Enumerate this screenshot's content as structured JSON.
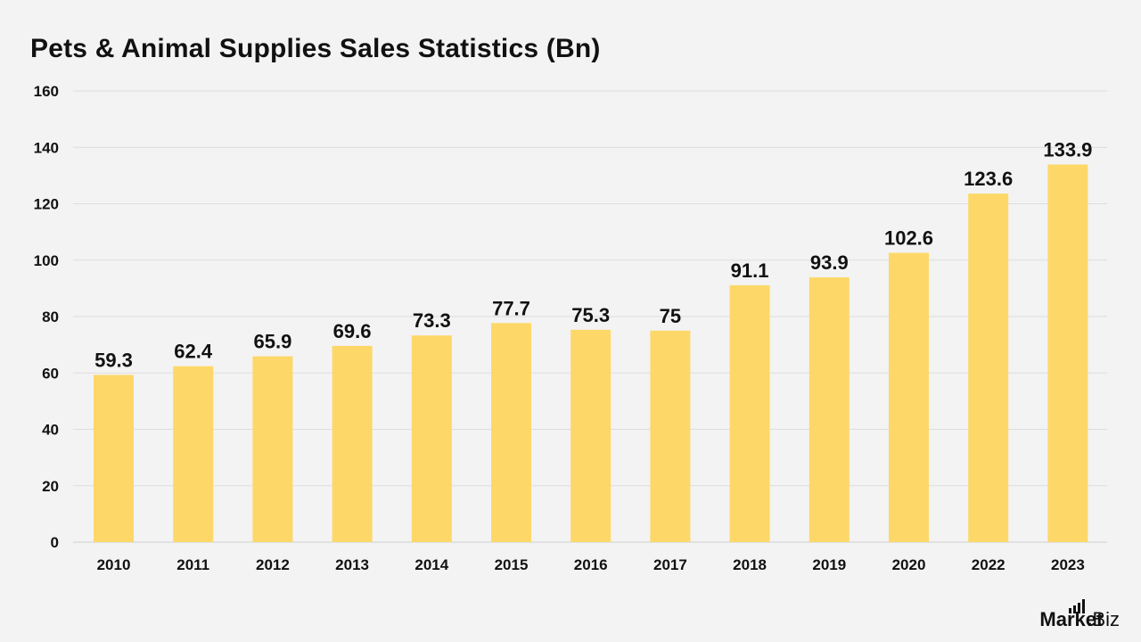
{
  "chart_data": {
    "type": "bar",
    "title": "Pets & Animal Supplies Sales Statistics (Bn)",
    "categories": [
      "2010",
      "2011",
      "2012",
      "2013",
      "2014",
      "2015",
      "2016",
      "2017",
      "2018",
      "2019",
      "2020",
      "2022",
      "2023"
    ],
    "values": [
      59.3,
      62.4,
      65.9,
      69.6,
      73.3,
      77.7,
      75.3,
      75,
      91.1,
      93.9,
      102.6,
      123.6,
      133.9
    ],
    "data_labels": [
      "59.3",
      "62.4",
      "65.9",
      "69.6",
      "73.3",
      "77.7",
      "75.3",
      "75",
      "91.1",
      "93.9",
      "102.6",
      "123.6",
      "133.9"
    ],
    "ylim": [
      0,
      160
    ],
    "yticks": [
      0,
      20,
      40,
      60,
      80,
      100,
      120,
      140,
      160
    ],
    "xlabel": "",
    "ylabel": "",
    "grid": true,
    "legend": "none",
    "colors": {
      "bar": "#fdd868",
      "grid": "#dddddd",
      "text": "#111111",
      "background": "#f3f3f3"
    }
  },
  "brand": {
    "main": "Market",
    "dot": ".",
    "sub": "Biz"
  }
}
